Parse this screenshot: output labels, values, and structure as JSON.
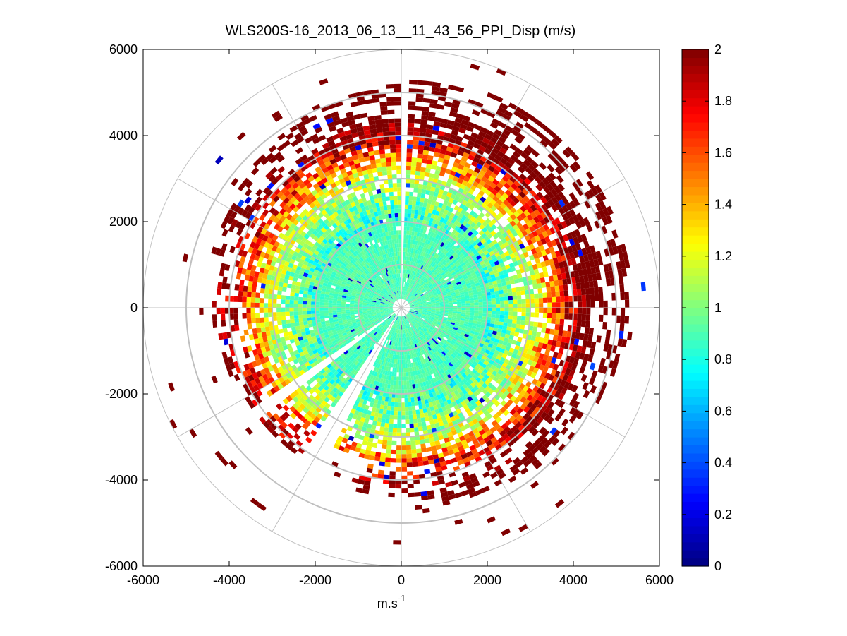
{
  "chart_data": {
    "type": "heatmap",
    "subtype": "polar-ppi",
    "title": "WLS200S-16_2013_06_13__11_43_56_PPI_Disp (m/s)",
    "xlabel": "m.s",
    "xlabel_superscript": "-1",
    "ylabel": "",
    "xlim": [
      -6000,
      6000
    ],
    "ylim": [
      -6000,
      6000
    ],
    "xticks": [
      -6000,
      -4000,
      -2000,
      0,
      2000,
      4000,
      6000
    ],
    "yticks": [
      6000,
      4000,
      2000,
      0,
      -2000,
      -4000,
      -6000
    ],
    "x_tick_labels": [
      "-6000",
      "-4000",
      "-2000",
      "0",
      "2000",
      "4000",
      "6000"
    ],
    "y_tick_labels": [
      "6000",
      "4000",
      "2000",
      "0",
      "-2000",
      "-4000",
      "-6000"
    ],
    "polar_grid_ranges": [
      1000,
      2000,
      3000,
      4000,
      5000,
      6000
    ],
    "polar_grid_angles_deg": [
      0,
      30,
      60,
      90,
      120,
      150,
      180,
      210,
      240,
      270,
      300,
      330
    ],
    "colorbar": {
      "min": 0,
      "max": 2,
      "ticks": [
        0,
        0.2,
        0.4,
        0.6,
        0.8,
        1,
        1.2,
        1.4,
        1.6,
        1.8,
        2
      ],
      "tick_labels": [
        "0",
        "0.2",
        "0.4",
        "0.6",
        "0.8",
        "1",
        "1.2",
        "1.4",
        "1.6",
        "1.8",
        "2"
      ],
      "colormap": "jet"
    },
    "data_description": {
      "max_range": 6000,
      "range_gate": 100,
      "azimuth_step_deg": 2,
      "near_value": 0.9,
      "far_value": 2.0,
      "transition_range": 3200,
      "blank_sectors_deg": [
        [
          -1,
          1
        ],
        [
          205,
          213
        ],
        [
          232,
          235
        ]
      ],
      "short_sectors_deg": [
        [
          195,
          205,
          3600
        ],
        [
          205,
          235,
          4200
        ]
      ]
    }
  },
  "colors": {
    "grid": "#c0c0c0",
    "axes": "#000000",
    "background": "#ffffff"
  }
}
